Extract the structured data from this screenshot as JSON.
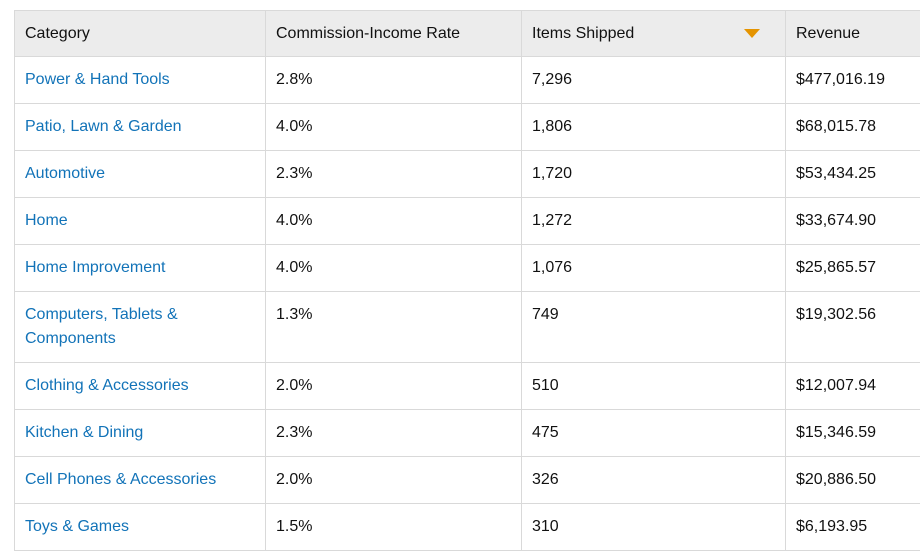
{
  "colors": {
    "link_blue": "#1273b8",
    "text_dark": "#111111",
    "header_bg": "#ececec",
    "border": "#d9d9d9",
    "sort_arrow": "#e59400"
  },
  "table": {
    "columns": [
      {
        "label": "Category"
      },
      {
        "label": "Commission-Income Rate"
      },
      {
        "label": "Items Shipped",
        "sorted": "desc"
      },
      {
        "label": "Revenue"
      }
    ],
    "sort_icon": "caret-down-icon",
    "rows": [
      {
        "category": "Power & Hand Tools",
        "rate": "2.8%",
        "items": "7,296",
        "revenue": "$477,016.19"
      },
      {
        "category": "Patio, Lawn & Garden",
        "rate": "4.0%",
        "items": "1,806",
        "revenue": "$68,015.78"
      },
      {
        "category": "Automotive",
        "rate": "2.3%",
        "items": "1,720",
        "revenue": "$53,434.25"
      },
      {
        "category": "Home",
        "rate": "4.0%",
        "items": "1,272",
        "revenue": "$33,674.90"
      },
      {
        "category": "Home Improvement",
        "rate": "4.0%",
        "items": "1,076",
        "revenue": "$25,865.57"
      },
      {
        "category": "Computers, Tablets & Components",
        "rate": "1.3%",
        "items": "749",
        "revenue": "$19,302.56"
      },
      {
        "category": "Clothing & Accessories",
        "rate": "2.0%",
        "items": "510",
        "revenue": "$12,007.94"
      },
      {
        "category": "Kitchen & Dining",
        "rate": "2.3%",
        "items": "475",
        "revenue": "$15,346.59"
      },
      {
        "category": "Cell Phones & Accessories",
        "rate": "2.0%",
        "items": "326",
        "revenue": "$20,886.50"
      },
      {
        "category": "Toys & Games",
        "rate": "1.5%",
        "items": "310",
        "revenue": "$6,193.95"
      }
    ]
  }
}
